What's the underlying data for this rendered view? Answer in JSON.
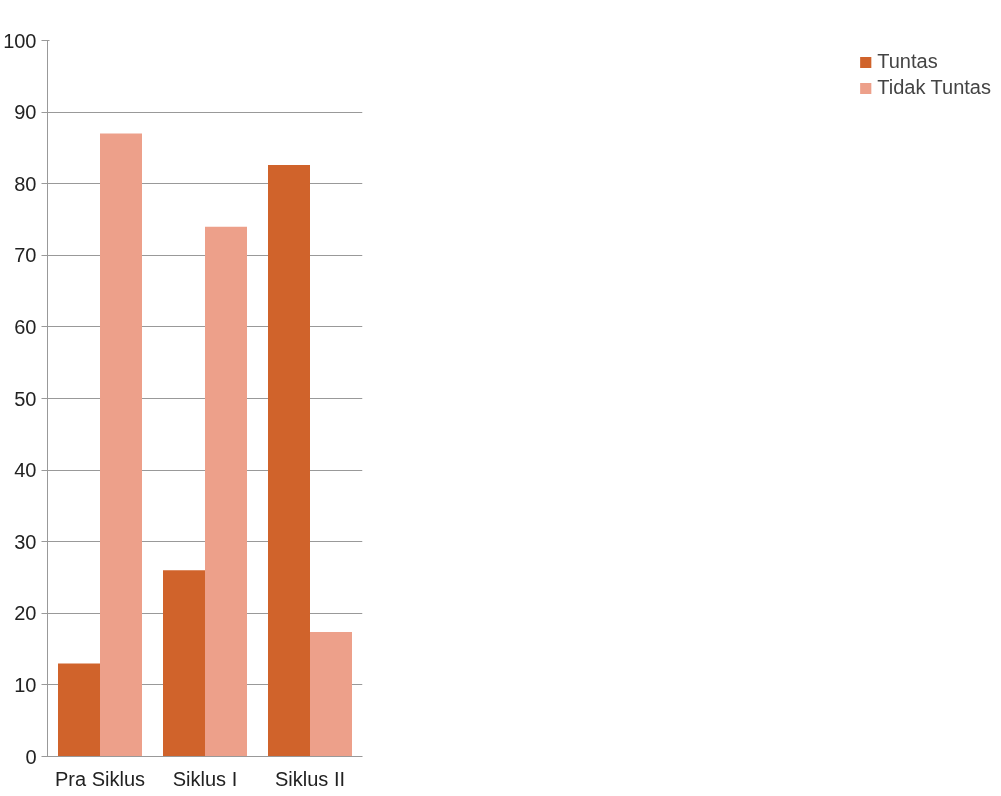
{
  "chart_data": {
    "type": "bar",
    "categories": [
      "Pra Siklus",
      "Siklus I",
      "Siklus II"
    ],
    "series": [
      {
        "name": "Tuntas",
        "color": "#d0632b",
        "values": [
          13,
          26,
          82.6
        ]
      },
      {
        "name": "Tidak Tuntas",
        "color": "#eda08a",
        "values": [
          87,
          74,
          17.4
        ]
      }
    ],
    "ylim": [
      0,
      100
    ],
    "yticks": [
      0,
      10,
      20,
      30,
      40,
      50,
      60,
      70,
      80,
      90,
      100
    ],
    "grid": "y",
    "legend": "right"
  }
}
